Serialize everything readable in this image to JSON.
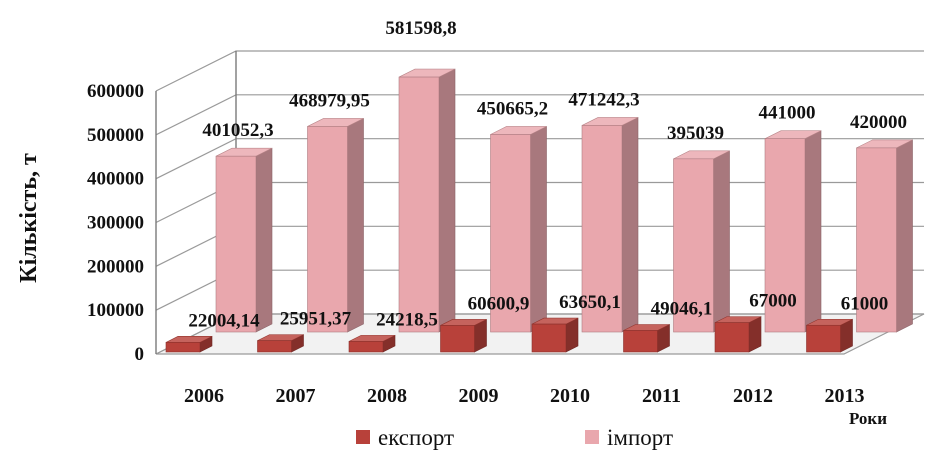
{
  "chart_data": {
    "type": "bar",
    "categories": [
      "2006",
      "2007",
      "2008",
      "2009",
      "2010",
      "2011",
      "2012",
      "2013"
    ],
    "series": [
      {
        "name": "експорт",
        "color": "#b8413a",
        "values": [
          22004.14,
          25951.37,
          24218.5,
          60600.9,
          63650.1,
          49046.1,
          67000,
          61000
        ],
        "labels": [
          "22004,14",
          "25951,37",
          "24218,5",
          "60600,9",
          "63650,1",
          "49046,1",
          "67000",
          "61000"
        ]
      },
      {
        "name": "імпорт",
        "color": "#e9a7ad",
        "values": [
          401052.3,
          468979.95,
          581598.8,
          450665.2,
          471242.3,
          395039,
          441000,
          420000
        ],
        "labels": [
          "401052,3",
          "468979,95",
          "581598,8",
          "450665,2",
          "471242,3",
          "395039",
          "441000",
          "420000"
        ]
      }
    ],
    "ylabel": "Кількість, т",
    "xlabel": "Роки",
    "ylim": [
      0,
      600000
    ],
    "yticks": [
      "0",
      "100000",
      "200000",
      "300000",
      "400000",
      "500000",
      "600000"
    ],
    "grid": true,
    "legend": "bottom",
    "style": "3d-columns"
  }
}
